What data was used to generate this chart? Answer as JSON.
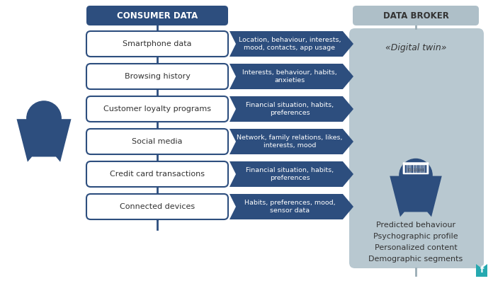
{
  "title_consumer": "CONSUMER DATA",
  "title_broker": "DATA BROKER",
  "digital_twin_label": "«Digital twin»",
  "bg_color": "#ffffff",
  "dark_blue": "#2d4e7e",
  "mid_blue": "#2d4e7e",
  "light_gray_panel": "#b8c8d0",
  "gray_box_color": "#aebfc8",
  "text_white": "#ffffff",
  "text_dark": "#333333",
  "text_gray": "#555555",
  "source_boxes": [
    "Smartphone data",
    "Browsing history",
    "Customer loyalty programs",
    "Social media",
    "Credit card transactions",
    "Connected devices"
  ],
  "data_labels": [
    "Location, behaviour, interests,\nmood, contacts, app usage",
    "Interests, behaviour, habits,\nanxieties",
    "Financial situation, habits,\npreferences",
    "Network, family relations, likes,\ninterests, mood",
    "Financial situation, habits,\npreferences",
    "Habits, preferences, mood,\nsensor data"
  ],
  "broker_bullets": [
    "Predicted behaviour",
    "Psychographic profile",
    "Personalized content",
    "Demographic segments"
  ],
  "figsize": [
    6.96,
    3.97
  ],
  "dpi": 100
}
